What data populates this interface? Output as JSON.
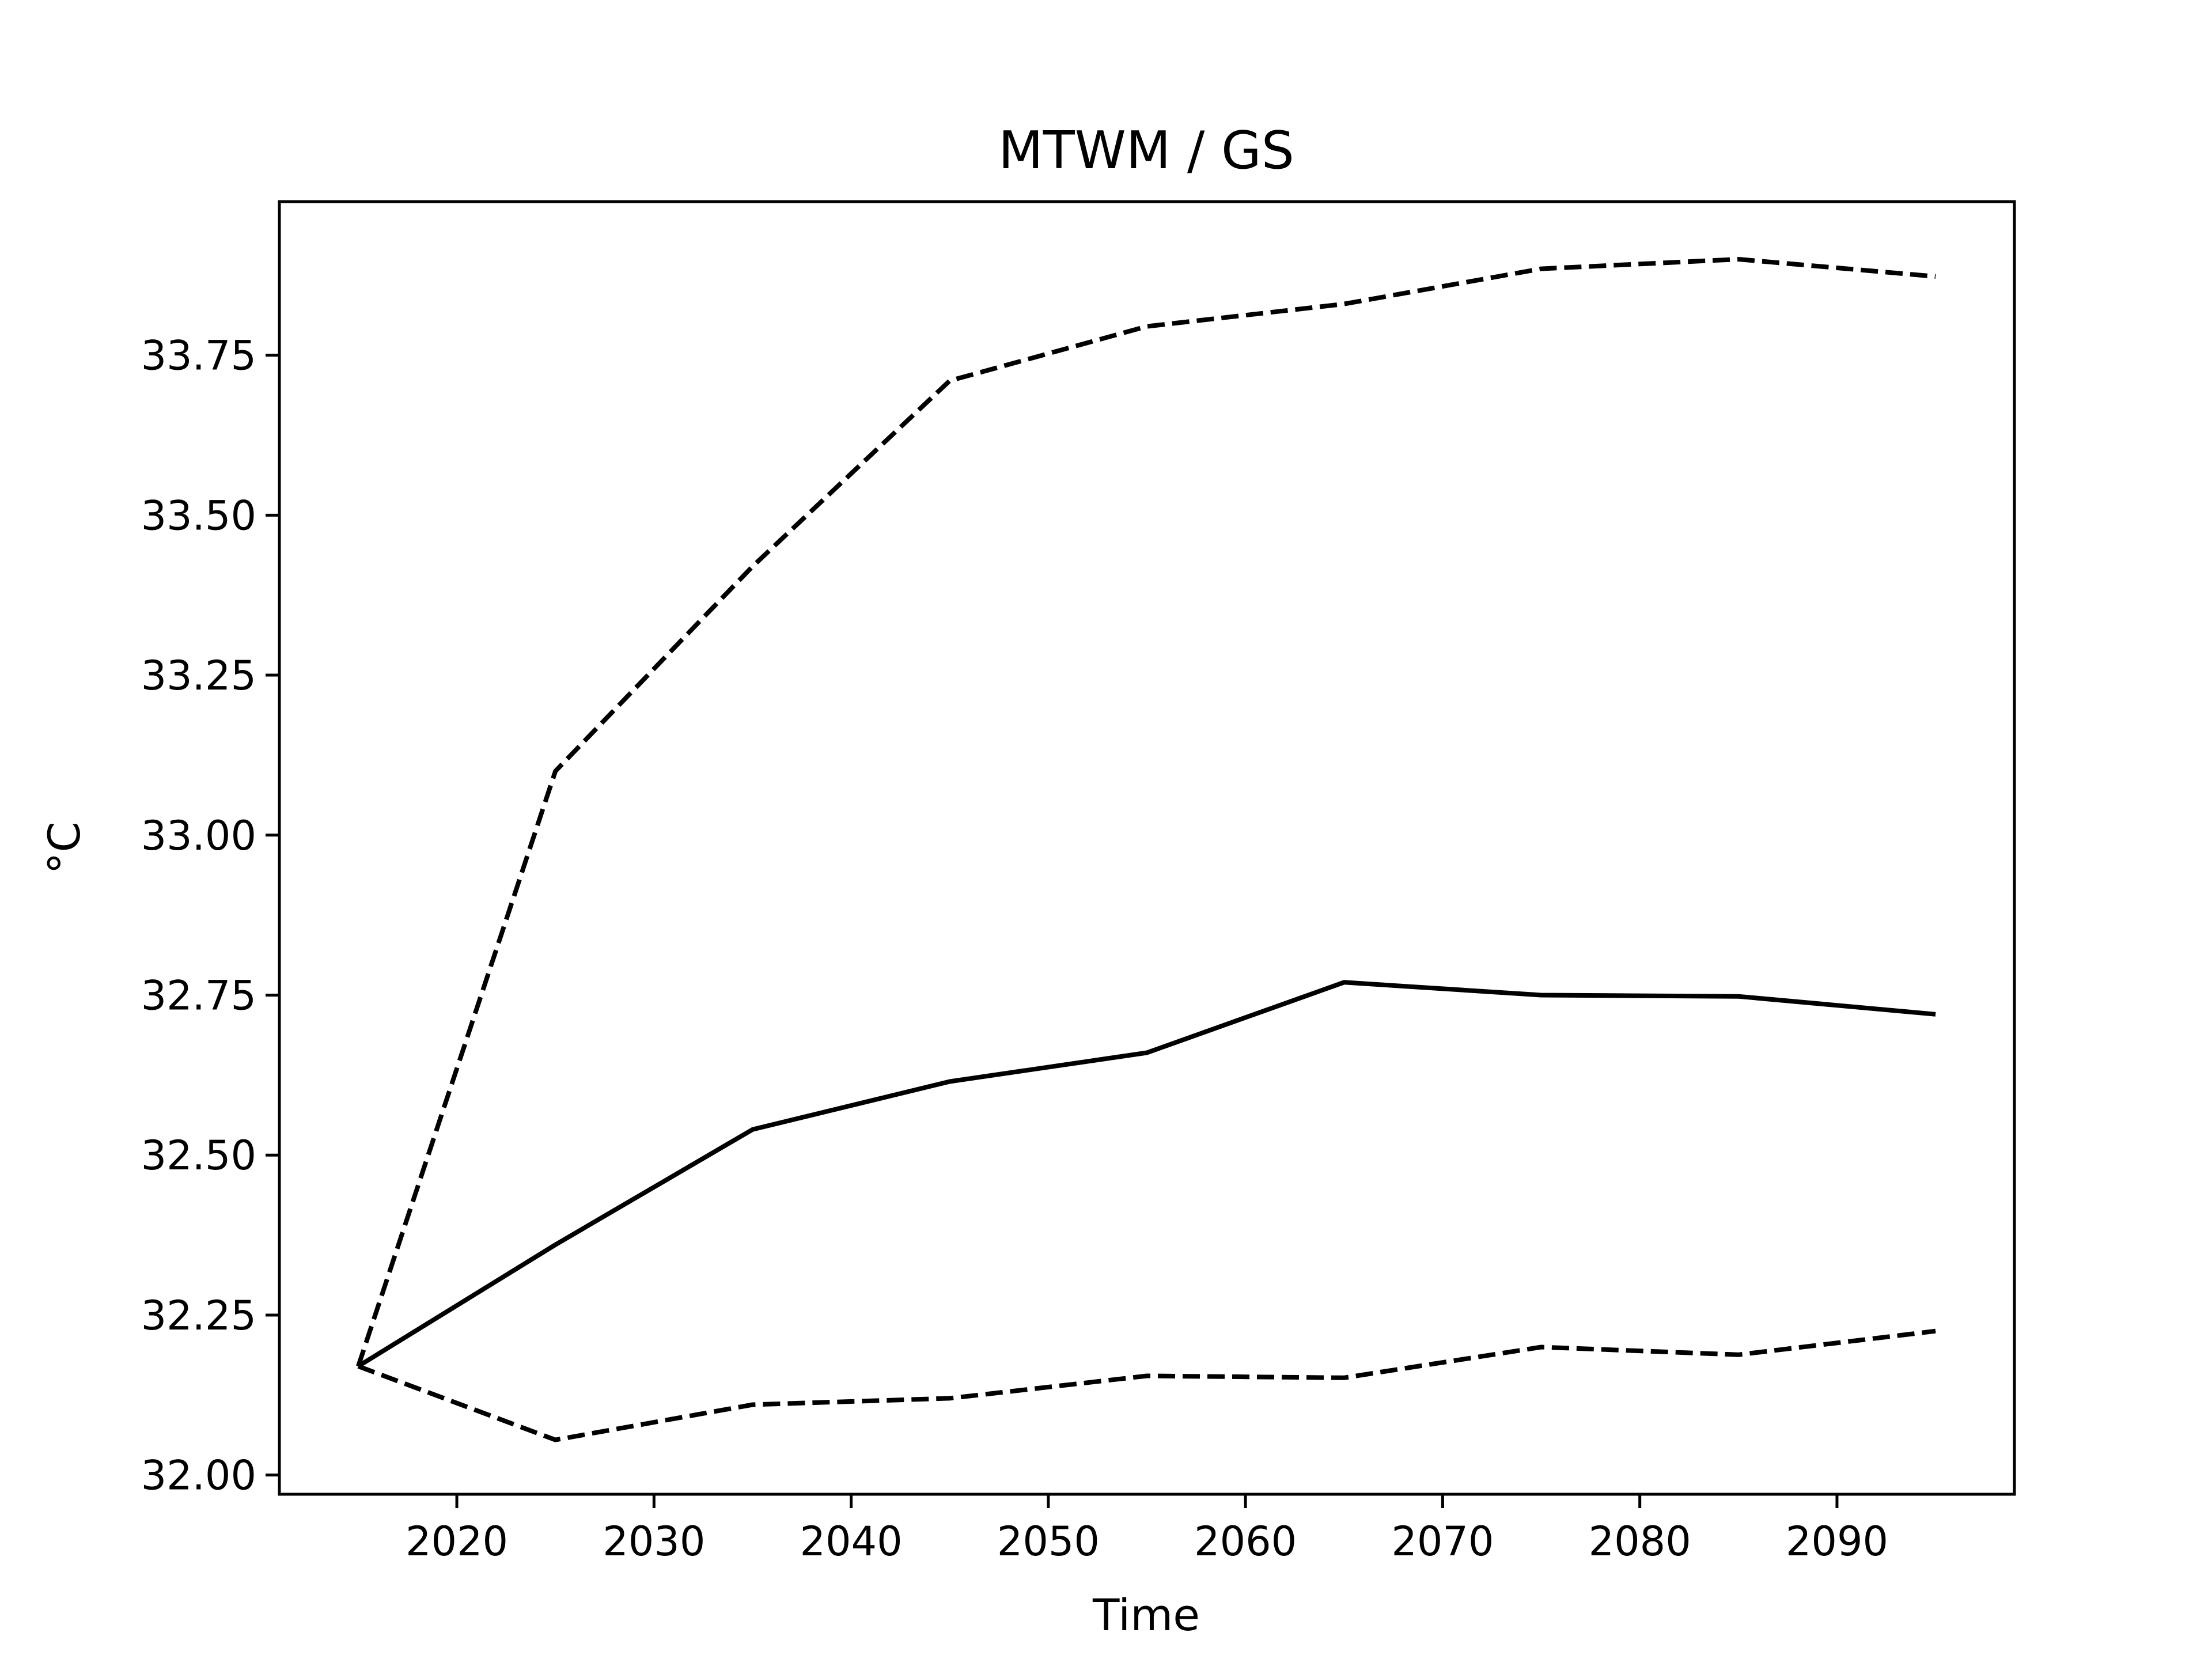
{
  "chart_data": {
    "type": "line",
    "title": "MTWM / GS",
    "xlabel": "Time",
    "ylabel": "°C",
    "xlim": [
      2011,
      2099
    ],
    "ylim": [
      31.97,
      33.99
    ],
    "grid": false,
    "x_ticks": [
      2020,
      2030,
      2040,
      2050,
      2060,
      2070,
      2080,
      2090
    ],
    "y_ticks": [
      "32.00",
      "32.25",
      "32.50",
      "32.75",
      "33.00",
      "33.25",
      "33.50",
      "33.75"
    ],
    "x": [
      2015,
      2025,
      2035,
      2045,
      2055,
      2065,
      2075,
      2085,
      2095
    ],
    "series": [
      {
        "style": "solid",
        "color": "#000000",
        "values": [
          32.17,
          32.36,
          32.54,
          32.615,
          32.66,
          32.77,
          32.75,
          32.748,
          32.72
        ]
      },
      {
        "style": "dashed",
        "color": "#000000",
        "values": [
          32.17,
          33.1,
          33.42,
          33.71,
          33.795,
          33.83,
          33.885,
          33.9,
          33.873
        ]
      },
      {
        "style": "dashed",
        "color": "#000000",
        "values": [
          32.17,
          32.055,
          32.11,
          32.12,
          32.155,
          32.152,
          32.2,
          32.188,
          32.225
        ]
      }
    ]
  }
}
